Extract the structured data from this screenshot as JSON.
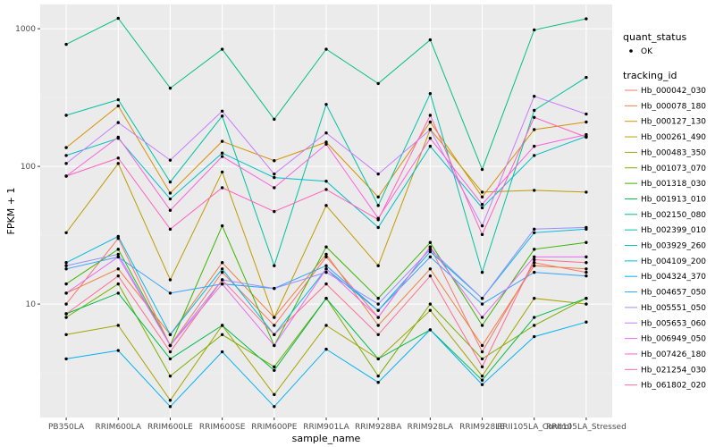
{
  "chart_data": {
    "type": "line",
    "xlabel": "sample_name",
    "ylabel": "FPKM + 1",
    "y_scale": "log10",
    "ylim": [
      1.5,
      1500
    ],
    "y_ticks": [
      {
        "value": 10,
        "label": "10"
      },
      {
        "value": 100,
        "label": "100"
      },
      {
        "value": 1000,
        "label": "1000"
      }
    ],
    "grid": true,
    "legend_position": "right",
    "categories": [
      "PB350LA",
      "RRIM600LA",
      "RRIM600LE",
      "RRIM600SE",
      "RRIM600PE",
      "RRIM901LA",
      "RRIM928BA",
      "RRIM928LA",
      "RRIM928LE",
      "RRII105LA_Control",
      "RRII105LA_Stressed"
    ],
    "legend_groups": [
      {
        "title": "quant_status",
        "entries": [
          {
            "label": "OK",
            "marker": "point"
          }
        ]
      },
      {
        "title": "tracking_id",
        "entries": [
          {
            "label": "Hb_000042_030",
            "color": "#F8766D"
          },
          {
            "label": "Hb_000078_180",
            "color": "#EE8043"
          },
          {
            "label": "Hb_000127_130",
            "color": "#D89000"
          },
          {
            "label": "Hb_000261_490",
            "color": "#C09B00"
          },
          {
            "label": "Hb_000483_350",
            "color": "#A3A500"
          },
          {
            "label": "Hb_001073_070",
            "color": "#7CAE00"
          },
          {
            "label": "Hb_001318_030",
            "color": "#39B600"
          },
          {
            "label": "Hb_001913_010",
            "color": "#00BB4E"
          },
          {
            "label": "Hb_002150_080",
            "color": "#00BF7D"
          },
          {
            "label": "Hb_002399_010",
            "color": "#00C1A3"
          },
          {
            "label": "Hb_003929_260",
            "color": "#00BFC4"
          },
          {
            "label": "Hb_004109_200",
            "color": "#00BAE0"
          },
          {
            "label": "Hb_004324_370",
            "color": "#00B0F6"
          },
          {
            "label": "Hb_004657_050",
            "color": "#35A2FF"
          },
          {
            "label": "Hb_005551_050",
            "color": "#9590FF"
          },
          {
            "label": "Hb_005653_060",
            "color": "#C77CFF"
          },
          {
            "label": "Hb_006949_050",
            "color": "#E76BF3"
          },
          {
            "label": "Hb_007426_180",
            "color": "#FA62DB"
          },
          {
            "label": "Hb_021254_030",
            "color": "#FF62BC"
          },
          {
            "label": "Hb_061802_020",
            "color": "#FF6C91"
          }
        ]
      }
    ],
    "series": [
      {
        "name": "Hb_000042_030",
        "color": "#F8766D",
        "values": [
          10,
          30,
          5,
          17,
          7,
          22,
          8,
          26,
          4.5,
          20,
          17
        ]
      },
      {
        "name": "Hb_000078_180",
        "color": "#EE8043",
        "values": [
          12,
          18,
          6,
          20,
          8,
          23,
          7,
          18,
          5,
          19,
          18
        ]
      },
      {
        "name": "Hb_000127_130",
        "color": "#D89000",
        "values": [
          137,
          275,
          64,
          152,
          110,
          150,
          60,
          210,
          60,
          185,
          210
        ]
      },
      {
        "name": "Hb_000261_490",
        "color": "#C09B00",
        "values": [
          33,
          105,
          15,
          91,
          8,
          52,
          19,
          186,
          65,
          67,
          65
        ]
      },
      {
        "name": "Hb_000483_350",
        "color": "#A3A500",
        "values": [
          6,
          7,
          2,
          7,
          2.2,
          7,
          4,
          9,
          3,
          11,
          10
        ]
      },
      {
        "name": "Hb_001073_070",
        "color": "#7CAE00",
        "values": [
          8,
          14,
          3,
          6,
          3.5,
          11,
          3,
          10,
          4,
          7,
          11
        ]
      },
      {
        "name": "Hb_001318_030",
        "color": "#39B600",
        "values": [
          14,
          25,
          5,
          37,
          5,
          26,
          11,
          28,
          7,
          25,
          28
        ]
      },
      {
        "name": "Hb_001913_010",
        "color": "#00BB4E",
        "values": [
          8.5,
          12,
          4,
          7,
          3.3,
          11,
          4,
          6.5,
          2.8,
          8,
          11
        ]
      },
      {
        "name": "Hb_002150_080",
        "color": "#00BF7D",
        "values": [
          770,
          1190,
          370,
          710,
          220,
          710,
          400,
          830,
          95,
          980,
          1180
        ]
      },
      {
        "name": "Hb_002399_010",
        "color": "#00C1A3",
        "values": [
          235,
          305,
          77,
          232,
          19,
          282,
          52,
          338,
          17,
          255,
          443
        ]
      },
      {
        "name": "Hb_003929_260",
        "color": "#00BFC4",
        "values": [
          120,
          160,
          58,
          125,
          83,
          78,
          36,
          140,
          50,
          120,
          165
        ]
      },
      {
        "name": "Hb_004109_200",
        "color": "#00BAE0",
        "values": [
          20,
          31,
          6,
          18,
          6,
          18,
          9,
          24,
          11,
          33,
          35
        ]
      },
      {
        "name": "Hb_004324_370",
        "color": "#00B0F6",
        "values": [
          4,
          4.6,
          1.8,
          4.5,
          1.8,
          4.7,
          2.7,
          6.5,
          2.6,
          5.8,
          7.4
        ]
      },
      {
        "name": "Hb_004657_050",
        "color": "#35A2FF",
        "values": [
          18,
          22,
          12,
          14,
          13,
          19,
          9,
          22,
          10,
          17,
          16
        ]
      },
      {
        "name": "Hb_005551_050",
        "color": "#9590FF",
        "values": [
          19,
          23,
          5,
          15,
          13,
          17,
          10,
          25,
          11,
          35,
          36
        ]
      },
      {
        "name": "Hb_005653_060",
        "color": "#C77CFF",
        "values": [
          105,
          208,
          111,
          252,
          88,
          175,
          88,
          185,
          37,
          323,
          240
        ]
      },
      {
        "name": "Hb_006949_050",
        "color": "#E76BF3",
        "values": [
          12,
          22,
          5,
          14,
          5,
          18,
          8,
          26,
          8,
          22,
          22
        ]
      },
      {
        "name": "Hb_007426_180",
        "color": "#FA62DB",
        "values": [
          85,
          163,
          48,
          118,
          70,
          145,
          42,
          160,
          53,
          140,
          170
        ]
      },
      {
        "name": "Hb_021254_030",
        "color": "#FF62BC",
        "values": [
          85,
          115,
          35,
          70,
          47,
          68,
          41,
          235,
          32,
          227,
          163
        ]
      },
      {
        "name": "Hb_061802_020",
        "color": "#FF6C91",
        "values": [
          8.5,
          16,
          4.5,
          15,
          6,
          14,
          6,
          16,
          3.5,
          21,
          20
        ]
      }
    ]
  }
}
